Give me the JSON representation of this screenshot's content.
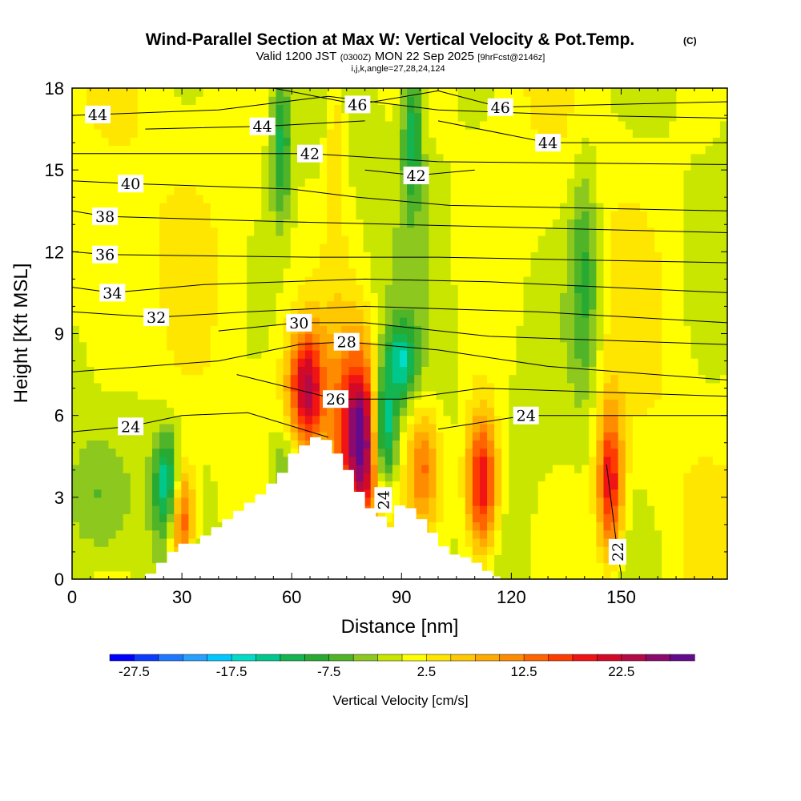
{
  "title": {
    "main": "Wind-Parallel Section at Max W: Vertical Velocity & Pot.Temp.",
    "copyright": "(C)",
    "valid_prefix": "Valid 1200 JST",
    "valid_utc": "(0300Z)",
    "valid_suffix": "MON 22 Sep 2025",
    "forecast": "[9hrFcst@2146z]",
    "indices": "i,j,k,angle=27,28,24,124"
  },
  "chart_data": {
    "type": "heatmap",
    "xlabel": "Distance [nm]",
    "ylabel": "Height [Kft MSL]",
    "xlim": [
      0,
      179
    ],
    "ylim": [
      0,
      18
    ],
    "x_ticks": [
      0,
      30,
      60,
      90,
      120,
      150
    ],
    "x_tick_labels": [
      "0",
      "30",
      "60",
      "90",
      "120",
      "150"
    ],
    "y_ticks": [
      0,
      3,
      6,
      9,
      12,
      15,
      18
    ],
    "y_tick_labels": [
      "0",
      "3",
      "6",
      "9",
      "12",
      "15",
      "18"
    ],
    "colorbar": {
      "label": "Vertical Velocity [cm/s]",
      "min": -30,
      "max": 30,
      "step": 2.5,
      "tick_values": [
        -27.5,
        -17.5,
        -7.5,
        2.5,
        12.5,
        22.5
      ],
      "tick_labels": [
        "-27.5",
        "-17.5",
        "-7.5",
        "2.5",
        "12.5",
        "22.5"
      ],
      "colors": [
        "#0000ff",
        "#0a3cff",
        "#1e78ff",
        "#28a0ff",
        "#00c8ff",
        "#00dcc8",
        "#00c88c",
        "#14b450",
        "#28aa32",
        "#50b428",
        "#8cc81e",
        "#c8e600",
        "#ffff00",
        "#ffe600",
        "#ffc800",
        "#ffaa00",
        "#ff8c00",
        "#ff6400",
        "#ff3c00",
        "#f01414",
        "#d20a28",
        "#b40a46",
        "#8c0a6e",
        "#640a8c"
      ]
    },
    "terrain_profile": {
      "x": [
        20,
        23,
        26,
        29,
        32,
        35,
        38,
        41,
        44,
        47,
        50,
        53,
        56,
        59,
        62,
        65,
        68,
        71,
        74,
        77,
        80,
        83,
        86,
        88,
        91,
        94,
        97,
        100,
        103,
        106,
        109,
        112,
        115
      ],
      "height": [
        0.2,
        0.6,
        1.0,
        1.3,
        1.3,
        1.6,
        1.9,
        2.2,
        2.5,
        2.8,
        3.1,
        3.5,
        3.9,
        4.6,
        4.9,
        5.2,
        5.1,
        4.6,
        4.0,
        3.2,
        2.6,
        2.3,
        1.9,
        2.7,
        2.6,
        2.2,
        1.7,
        1.2,
        0.9,
        0.8,
        0.6,
        0.3,
        0.1
      ]
    },
    "vertical_velocity_cells": [
      {
        "x": 30,
        "z": 2.2,
        "sx": 2.5,
        "sz": 1.4,
        "w": 18
      },
      {
        "x": 26,
        "z": 3.5,
        "sx": 2.5,
        "sz": 1.3,
        "w": -15
      },
      {
        "x": 8,
        "z": 2.8,
        "sx": 6,
        "sz": 1.8,
        "w": -6
      },
      {
        "x": 64,
        "z": 7.0,
        "sx": 3.5,
        "sz": 1.5,
        "w": 22
      },
      {
        "x": 76,
        "z": 5.5,
        "sx": 4,
        "sz": 2.5,
        "w": 15
      },
      {
        "x": 80,
        "z": 5.0,
        "sx": 3,
        "sz": 2.0,
        "w": 20
      },
      {
        "x": 85,
        "z": 5.5,
        "sx": 2.5,
        "sz": 1.5,
        "w": -18
      },
      {
        "x": 90,
        "z": 8.0,
        "sx": 3,
        "sz": 1.0,
        "w": -13
      },
      {
        "x": 96,
        "z": 4.2,
        "sx": 3,
        "sz": 1.5,
        "w": 12
      },
      {
        "x": 112,
        "z": 3.5,
        "sx": 3,
        "sz": 1.8,
        "w": 22
      },
      {
        "x": 147,
        "z": 3.5,
        "sx": 2.5,
        "sz": 2.0,
        "w": 20
      },
      {
        "x": 140,
        "z": 11.0,
        "sx": 3,
        "sz": 3.0,
        "w": -9
      },
      {
        "x": 58,
        "z": 3.8,
        "sx": 3,
        "sz": 1.5,
        "w": -7
      },
      {
        "x": 72,
        "z": 16.0,
        "sx": 2,
        "sz": 2.5,
        "w": 6
      },
      {
        "x": 93,
        "z": 16.5,
        "sx": 2,
        "sz": 2.0,
        "w": -12
      },
      {
        "x": 57,
        "z": 16.0,
        "sx": 2,
        "sz": 2.0,
        "w": -11
      },
      {
        "x": 10,
        "z": 9.5,
        "sx": 6,
        "sz": 3.0,
        "w": 4
      }
    ],
    "theta_contours": [
      {
        "value": 44,
        "label": "44",
        "label_x": 7,
        "points": [
          [
            0,
            17.0
          ],
          [
            40,
            17.2
          ],
          [
            70,
            17.7
          ],
          [
            100,
            17.2
          ],
          [
            140,
            17.0
          ],
          [
            179,
            16.9
          ]
        ]
      },
      {
        "value": 46,
        "label": "46",
        "label_x": 78,
        "points": [
          [
            55,
            18.0
          ],
          [
            78,
            17.4
          ],
          [
            100,
            17.9
          ]
        ]
      },
      {
        "value": 46,
        "label": "46",
        "label_x": 117,
        "points": [
          [
            100,
            17.9
          ],
          [
            117,
            17.3
          ],
          [
            179,
            17.5
          ]
        ]
      },
      {
        "value": 44,
        "label": "44",
        "label_x": 52,
        "points": [
          [
            20,
            16.5
          ],
          [
            52,
            16.6
          ],
          [
            80,
            16.8
          ]
        ]
      },
      {
        "value": 44,
        "label": "44",
        "label_x": 130,
        "points": [
          [
            100,
            16.8
          ],
          [
            130,
            16.0
          ],
          [
            179,
            16.0
          ]
        ]
      },
      {
        "value": 42,
        "label": "42",
        "label_x": 65,
        "points": [
          [
            0,
            15.6
          ],
          [
            65,
            15.6
          ],
          [
            100,
            15.3
          ],
          [
            179,
            15.2
          ]
        ]
      },
      {
        "value": 42,
        "label": "42",
        "label_x": 94,
        "points": [
          [
            80,
            15.0
          ],
          [
            94,
            14.8
          ],
          [
            110,
            15.0
          ]
        ]
      },
      {
        "value": 40,
        "label": "40",
        "label_x": 16,
        "points": [
          [
            0,
            14.6
          ],
          [
            16,
            14.5
          ],
          [
            60,
            14.3
          ],
          [
            78,
            14.0
          ],
          [
            103,
            13.7
          ],
          [
            179,
            13.5
          ]
        ]
      },
      {
        "value": 38,
        "label": "38",
        "label_x": 9,
        "points": [
          [
            0,
            13.5
          ],
          [
            9,
            13.3
          ],
          [
            59,
            13.1
          ],
          [
            90,
            13.0
          ],
          [
            120,
            12.9
          ],
          [
            179,
            12.7
          ]
        ]
      },
      {
        "value": 36,
        "label": "36",
        "label_x": 9,
        "points": [
          [
            0,
            12.0
          ],
          [
            9,
            11.9
          ],
          [
            65,
            11.8
          ],
          [
            100,
            11.8
          ],
          [
            179,
            11.6
          ]
        ]
      },
      {
        "value": 34,
        "label": "34",
        "label_x": 11,
        "points": [
          [
            0,
            10.7
          ],
          [
            11,
            10.5
          ],
          [
            36,
            10.8
          ],
          [
            80,
            11.0
          ],
          [
            114,
            10.9
          ],
          [
            179,
            10.5
          ]
        ]
      },
      {
        "value": 32,
        "label": "32",
        "label_x": 23,
        "points": [
          [
            0,
            9.8
          ],
          [
            23,
            9.6
          ],
          [
            48,
            9.8
          ],
          [
            80,
            10.0
          ],
          [
            127,
            9.8
          ],
          [
            179,
            9.4
          ]
        ]
      },
      {
        "value": 30,
        "label": "30",
        "label_x": 62,
        "points": [
          [
            40,
            9.1
          ],
          [
            62,
            9.4
          ],
          [
            80,
            9.4
          ],
          [
            114,
            8.9
          ],
          [
            179,
            8.6
          ]
        ]
      },
      {
        "value": 28,
        "label": "28",
        "label_x": 75,
        "points": [
          [
            0,
            7.6
          ],
          [
            40,
            8.0
          ],
          [
            62,
            8.6
          ],
          [
            75,
            8.7
          ],
          [
            100,
            8.4
          ],
          [
            130,
            7.8
          ],
          [
            179,
            7.3
          ]
        ]
      },
      {
        "value": 26,
        "label": "26",
        "label_x": 72,
        "points": [
          [
            45,
            7.5
          ],
          [
            72,
            6.6
          ],
          [
            90,
            6.6
          ],
          [
            112,
            7.0
          ],
          [
            179,
            6.7
          ]
        ]
      },
      {
        "value": 24,
        "label": "24",
        "label_x": 16,
        "points": [
          [
            0,
            5.4
          ],
          [
            16,
            5.6
          ],
          [
            30,
            6.0
          ],
          [
            48,
            6.1
          ],
          [
            70,
            5.2
          ]
        ]
      },
      {
        "value": 24,
        "label": "24",
        "label_x": 124,
        "points": [
          [
            100,
            5.5
          ],
          [
            124,
            6.0
          ],
          [
            179,
            6.0
          ]
        ]
      },
      {
        "value": 24,
        "label": "24",
        "label_x": 85,
        "points": [
          [
            85,
            3.3
          ],
          [
            85,
            2.5
          ]
        ]
      },
      {
        "value": 22,
        "label": "22",
        "label_x": 149,
        "points": [
          [
            146,
            4.2
          ],
          [
            149,
            1.0
          ],
          [
            150,
            0.2
          ]
        ]
      }
    ]
  }
}
